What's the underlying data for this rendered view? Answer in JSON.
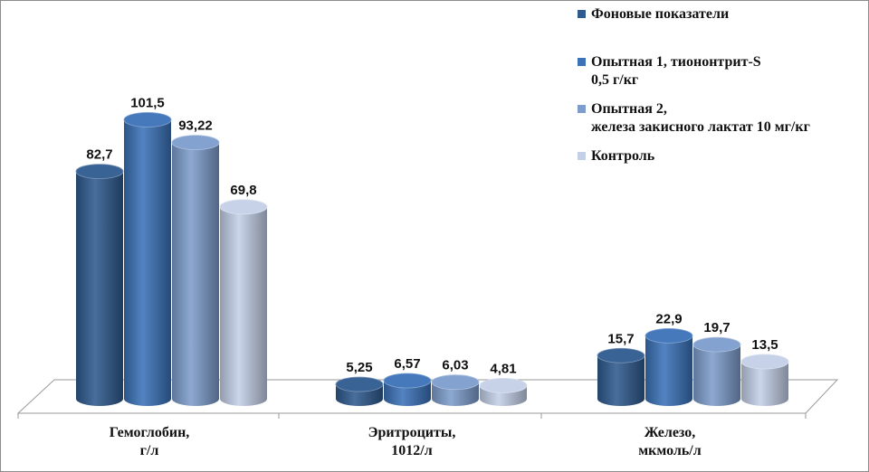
{
  "chart_data": {
    "type": "bar",
    "categories": [
      [
        "Гемоглобин,",
        "г/л"
      ],
      [
        "Эритроциты,",
        "1012/л"
      ],
      [
        "Железо,",
        "мкмоль/л"
      ]
    ],
    "series": [
      {
        "name": "Фоновые показатели",
        "values": [
          82.7,
          5.25,
          15.7
        ],
        "labels": [
          "82,7",
          "5,25",
          "15,7"
        ],
        "color": "#2f5a8f"
      },
      {
        "name": "Опытная 1, тиононтрит-S\n0,5 г/кг",
        "values": [
          101.5,
          6.57,
          22.9
        ],
        "labels": [
          "101,5",
          "6,57",
          "22,9"
        ],
        "color": "#3b72b8"
      },
      {
        "name": "Опытная 2,\nжелеза закисного лактат 10 мг/кг",
        "values": [
          93.22,
          6.03,
          19.7
        ],
        "labels": [
          "93,22",
          "6,03",
          "19,7"
        ],
        "color": "#7d9dcc"
      },
      {
        "name": "Контроль",
        "values": [
          69.8,
          4.81,
          13.5
        ],
        "labels": [
          "69,8",
          "4,81",
          "13,5"
        ],
        "color": "#c4d0e8"
      }
    ],
    "legend_position": "top-right",
    "style": "3d-cylinder"
  }
}
